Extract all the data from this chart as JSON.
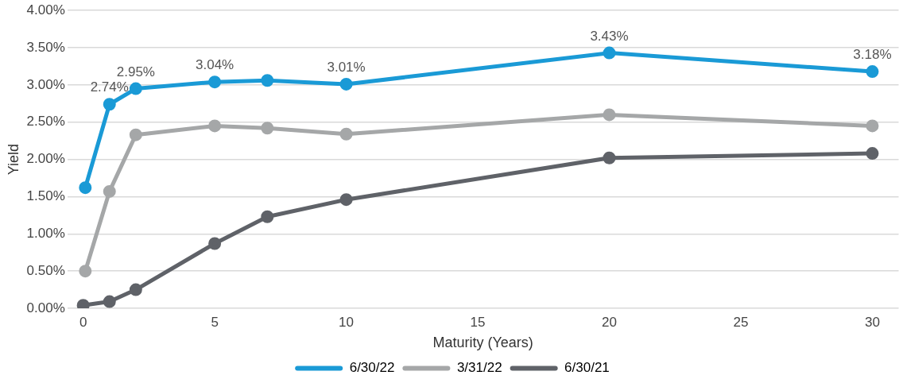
{
  "chart_data": {
    "type": "line",
    "xlabel": "Maturity (Years)",
    "ylabel": "Yield",
    "xlim": [
      -0.6,
      31
    ],
    "xticks": [
      0,
      5,
      10,
      15,
      20,
      25,
      30
    ],
    "ylim": [
      0,
      4
    ],
    "yticks": [
      {
        "value": 0,
        "label": "0.00%"
      },
      {
        "value": 0.5,
        "label": "0.50%"
      },
      {
        "value": 1,
        "label": "1.00%"
      },
      {
        "value": 1.5,
        "label": "1.50%"
      },
      {
        "value": 2,
        "label": "2.00%"
      },
      {
        "value": 2.5,
        "label": "2.50%"
      },
      {
        "value": 3,
        "label": "3.00%"
      },
      {
        "value": 3.5,
        "label": "3.50%"
      },
      {
        "value": 4,
        "label": "4.00%"
      }
    ],
    "grid": "y",
    "legend": "bottom",
    "marker": "circle",
    "line_style": "solid",
    "series": [
      {
        "name": "6/30/22",
        "color": "#1a9ad6",
        "x": [
          0.08,
          1,
          2,
          5,
          7,
          10,
          20,
          30
        ],
        "values": [
          1.62,
          2.74,
          2.95,
          3.04,
          3.06,
          3.01,
          3.43,
          3.18
        ],
        "value_labels": [
          null,
          "2.74%",
          "2.95%",
          "3.04%",
          null,
          "3.01%",
          "3.43%",
          "3.18%"
        ]
      },
      {
        "name": "3/31/22",
        "color": "#a5a7a8",
        "x": [
          0.08,
          1,
          2,
          5,
          7,
          10,
          20,
          30
        ],
        "values": [
          0.5,
          1.57,
          2.33,
          2.45,
          2.42,
          2.34,
          2.6,
          2.45
        ]
      },
      {
        "name": "6/30/21",
        "color": "#5f6268",
        "x": [
          0,
          1,
          2,
          5,
          7,
          10,
          20,
          30
        ],
        "values": [
          0.04,
          0.09,
          0.25,
          0.87,
          1.23,
          1.46,
          2.02,
          2.08
        ]
      }
    ]
  }
}
